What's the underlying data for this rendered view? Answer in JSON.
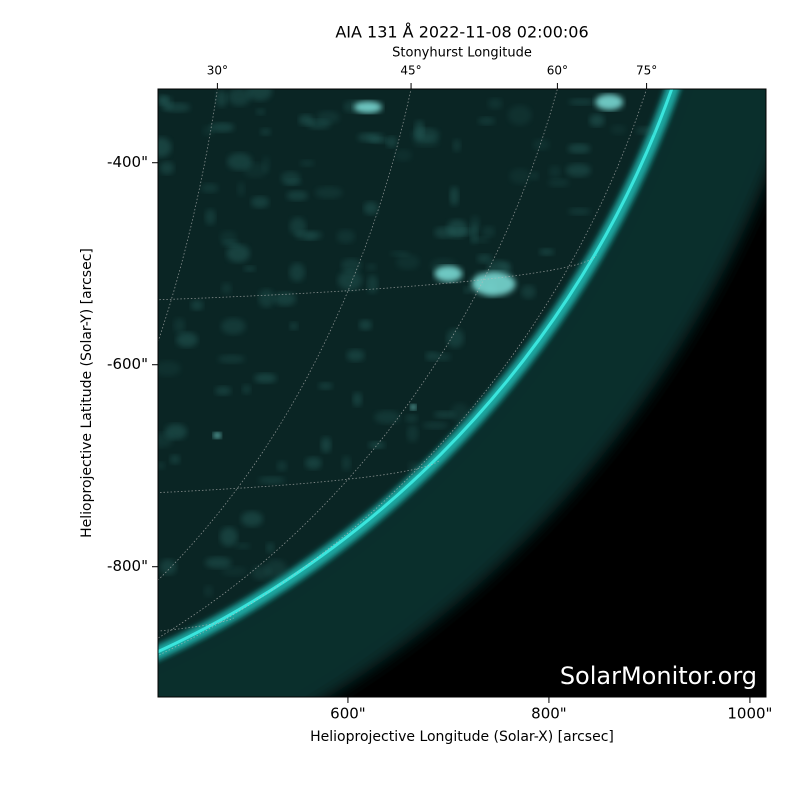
{
  "chart_data": {
    "type": "image",
    "title": "AIA 131 Å 2022-11-08 02:00:06",
    "xlabel": "Helioprojective Longitude (Solar-X) [arcsec]",
    "ylabel": "Helioprojective Latitude (Solar-Y) [arcsec]",
    "xlim": [
      411,
      1016
    ],
    "ylim": [
      -929,
      -327
    ],
    "xticks": [
      {
        "value": 600,
        "label": "600\""
      },
      {
        "value": 800,
        "label": "800\""
      },
      {
        "value": 1000,
        "label": "1000\""
      }
    ],
    "yticks": [
      {
        "value": -400,
        "label": "-400\""
      },
      {
        "value": -600,
        "label": "-600\""
      },
      {
        "value": -800,
        "label": "-800\""
      }
    ],
    "top_axis_label": "Stonyhurst Longitude",
    "top_ticks": [
      {
        "value": 30,
        "label": "30°"
      },
      {
        "value": 45,
        "label": "45°"
      },
      {
        "value": 60,
        "label": "60°"
      },
      {
        "value": 75,
        "label": "75°"
      }
    ],
    "watermark": "SolarMonitor.org",
    "color": "#3ff0e8"
  }
}
